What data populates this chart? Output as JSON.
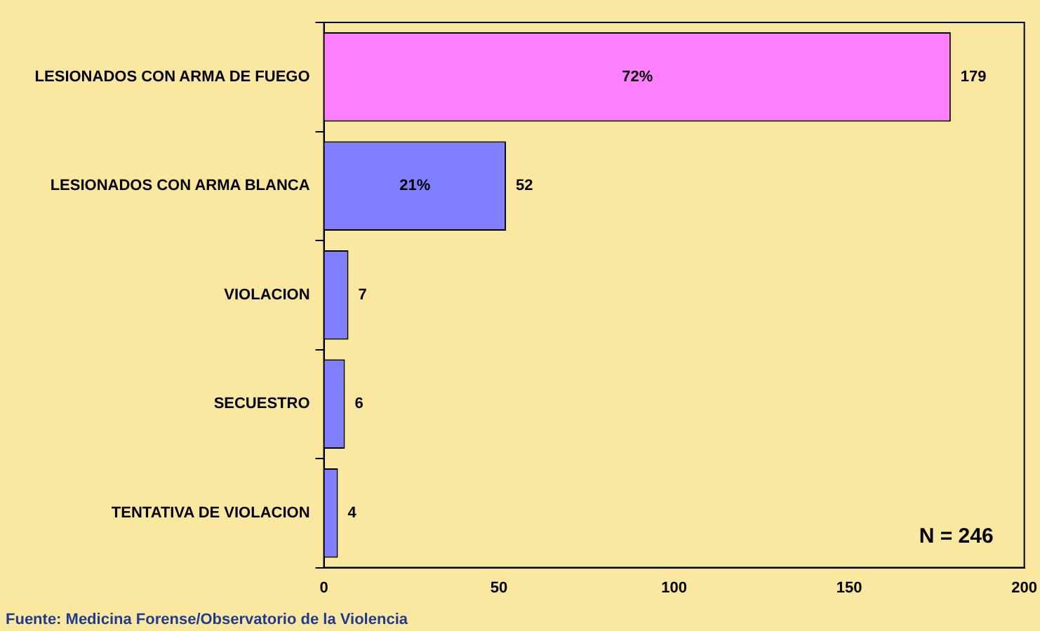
{
  "chart_data": {
    "type": "bar",
    "orientation": "horizontal",
    "categories": [
      "LESIONADOS CON ARMA DE FUEGO",
      "LESIONADOS CON ARMA BLANCA",
      "VIOLACION",
      "SECUESTRO",
      "TENTATIVA DE VIOLACION"
    ],
    "values": [
      179,
      52,
      7,
      6,
      4
    ],
    "colors": [
      "#ff80ff",
      "#8080ff",
      "#8080ff",
      "#8080ff",
      "#8080ff"
    ],
    "xlim": [
      0,
      200
    ],
    "xticks": [
      0,
      50,
      100,
      150,
      200
    ],
    "grid": false,
    "legend": false,
    "data_labels": true,
    "annotations": [
      {
        "text": "72%",
        "x": 89.5,
        "y": "LESIONADOS CON ARMA DE FUEGO"
      },
      {
        "text": "21%",
        "x": 26,
        "y": "LESIONADOS CON ARMA BLANCA"
      },
      "N = 246",
      "Fuente: Medicina Forense/Observatorio de la Violencia"
    ]
  }
}
